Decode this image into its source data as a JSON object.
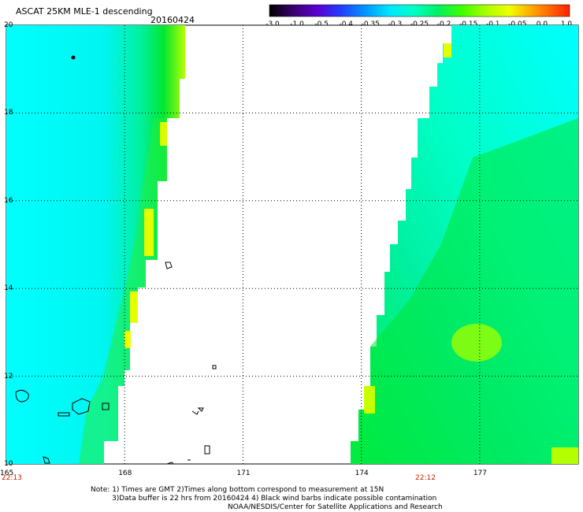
{
  "header": {
    "title": "ASCAT 25KM MLE-1 descending",
    "date": "20160424"
  },
  "colorbar": {
    "labels": [
      "-3.0",
      "-1.0",
      "-0.5",
      "-0.4",
      "-0.35",
      "-0.3",
      "-0.25",
      "-0.2",
      "-0.15",
      "-0.1",
      "-0.05",
      "0.0",
      "1.0"
    ],
    "colors": [
      "#000000",
      "#4b007d",
      "#5a00ff",
      "#0046ff",
      "#00a0ff",
      "#00ffff",
      "#00ff96",
      "#00e632",
      "#96ff00",
      "#ffff00",
      "#ffa000",
      "#ff5000",
      "#ff0000"
    ]
  },
  "axes": {
    "lat_labels": [
      "20",
      "18",
      "16",
      "14",
      "12",
      "10"
    ],
    "lon_labels": [
      "165",
      "168",
      "171",
      "174",
      "177"
    ],
    "lat_range": [
      10,
      20
    ],
    "lon_range": [
      165,
      179.5
    ]
  },
  "time_labels": {
    "left": "22:13",
    "right": "22:12"
  },
  "footer": {
    "line1": "Note: 1) Times are GMT 2)Times along bottom correspond to measurement at 15N",
    "line2": "3)Data buffer is 22 hrs from 20160424 4) Black wind barbs indicate possible contamination",
    "line3": "NOAA/NESDIS/Center for Satellite Applications and Research"
  }
}
